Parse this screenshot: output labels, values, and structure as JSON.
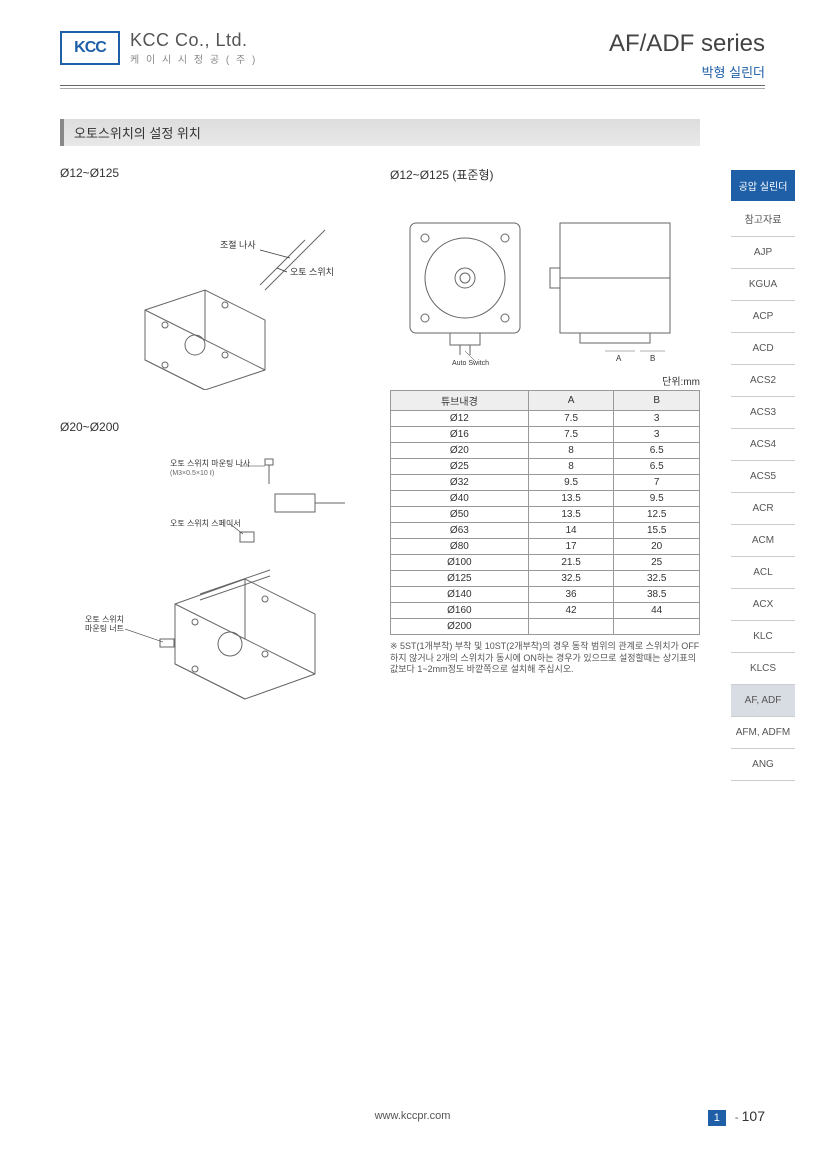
{
  "header": {
    "logo_text": "KCC",
    "company_en": "KCC Co., Ltd.",
    "company_kr": "케 이 시 시 정 공 ( 주 )",
    "series_title": "AF/ADF series",
    "series_sub": "박형 실린더"
  },
  "section": {
    "title": "오토스위치의 설정 위치"
  },
  "diagrams": {
    "left1_label": "Ø12~Ø125",
    "left1_callout1": "조절 나사",
    "left1_callout2": "오토 스위치",
    "left2_label": "Ø20~Ø200",
    "left2_callout1": "오토 스위치 마운팅 나사",
    "left2_callout1_sub": "(M3×0.5×10 ℓ)",
    "left2_callout2": "오토 스위치 스페이서",
    "left2_callout3": "오토 스위치",
    "left2_callout3_sub": "마운팅 너트",
    "right_label": "Ø12~Ø125 (표준형)",
    "right_switch_label": "Auto Switch",
    "right_dim_a": "A",
    "right_dim_b": "B"
  },
  "table": {
    "unit_caption": "단위:mm",
    "columns": [
      "튜브내경",
      "A",
      "B"
    ],
    "rows": [
      [
        "Ø12",
        "7.5",
        "3"
      ],
      [
        "Ø16",
        "7.5",
        "3"
      ],
      [
        "Ø20",
        "8",
        "6.5"
      ],
      [
        "Ø25",
        "8",
        "6.5"
      ],
      [
        "Ø32",
        "9.5",
        "7"
      ],
      [
        "Ø40",
        "13.5",
        "9.5"
      ],
      [
        "Ø50",
        "13.5",
        "12.5"
      ],
      [
        "Ø63",
        "14",
        "15.5"
      ],
      [
        "Ø80",
        "17",
        "20"
      ],
      [
        "Ø100",
        "21.5",
        "25"
      ],
      [
        "Ø125",
        "32.5",
        "32.5"
      ],
      [
        "Ø140",
        "36",
        "38.5"
      ],
      [
        "Ø160",
        "42",
        "44"
      ],
      [
        "Ø200",
        "",
        ""
      ]
    ],
    "note": "※ 5ST(1개부착) 부착 및 10ST(2개부착)의 경우 동작 범위의 관계로 스위치가 OFF하지 않거나 2개의 스위치가 동시에 ON하는 경우가 있으므로 설정할때는 상기표의 값보다 1~2mm정도 바깥쪽으로 설치해 주십시오."
  },
  "sidebar": {
    "head": "공압 실린더",
    "items": [
      "참고자료",
      "AJP",
      "KGUA",
      "ACP",
      "ACD",
      "ACS2",
      "ACS3",
      "ACS4",
      "ACS5",
      "ACR",
      "ACM",
      "ACL",
      "ACX",
      "KLC",
      "KLCS",
      "AF, ADF",
      "AFM, ADFM",
      "ANG"
    ],
    "active_index": 15
  },
  "footer": {
    "url": "www.kccpr.com",
    "section_no": "1",
    "dash": "-",
    "page_no": "107"
  },
  "colors": {
    "brand": "#1e5fa8",
    "line_gray": "#888888",
    "diagram_stroke": "#666666"
  }
}
